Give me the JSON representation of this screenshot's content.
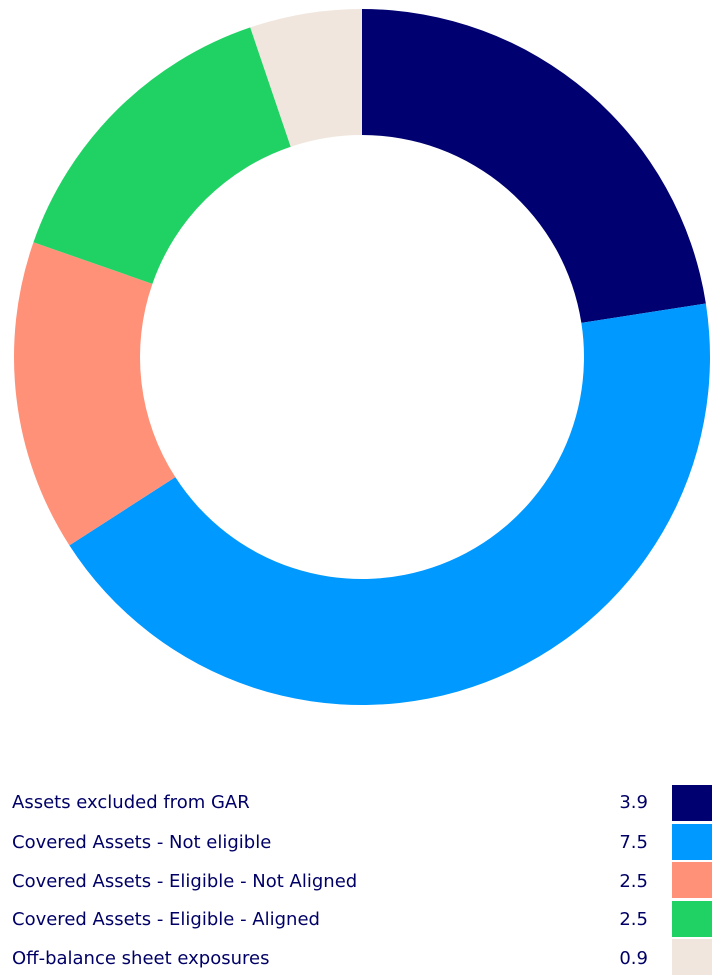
{
  "chart_data": {
    "type": "donut",
    "categories": [
      "Assets excluded from GAR",
      "Covered Assets - Not eligible",
      "Covered Assets - Eligible - Not Aligned",
      "Covered Assets - Eligible - Aligned",
      "Off-balance sheet exposures"
    ],
    "values": [
      3.9,
      7.5,
      2.5,
      2.5,
      0.9
    ],
    "colors": [
      "#000070",
      "#0099ff",
      "#ff9178",
      "#20d264",
      "#f0e6dd"
    ]
  }
}
